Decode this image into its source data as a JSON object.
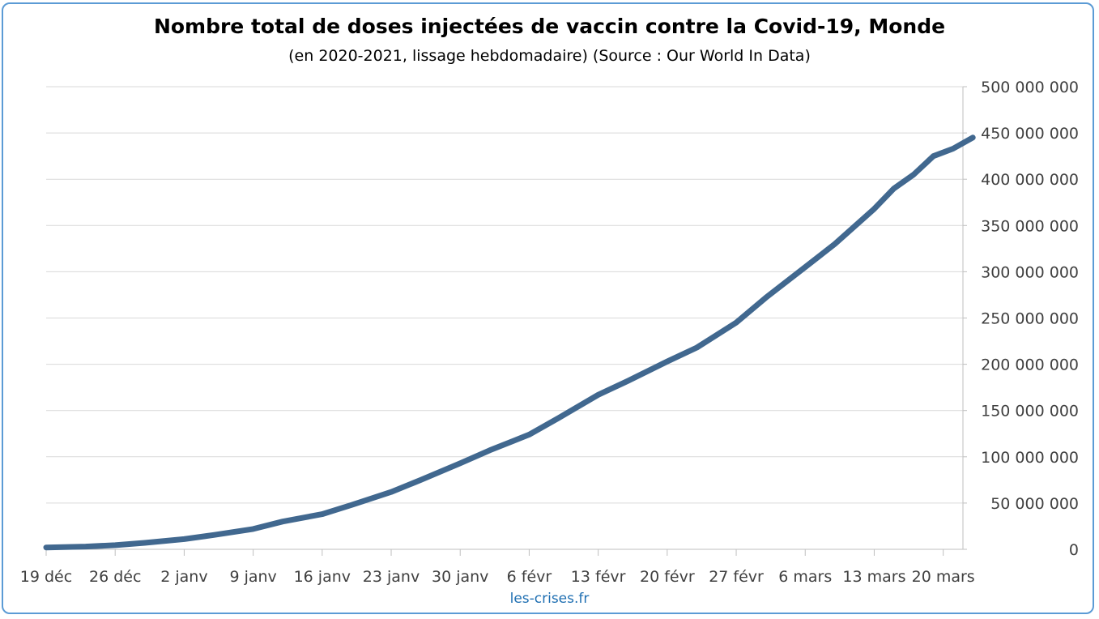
{
  "chart_data": {
    "type": "line",
    "title": "Nombre total de doses injectées de vaccin contre la Covid-19, Monde",
    "subtitle": "(en 2020-2021, lissage hebdomadaire) (Source : Our World In Data)",
    "credit": "les-crises.fr",
    "x_tick_labels": [
      "19 déc",
      "26 déc",
      "2 janv",
      "9 janv",
      "16 janv",
      "23 janv",
      "30 janv",
      "6 févr",
      "13 févr",
      "20 févr",
      "27 févr",
      "6 mars",
      "13 mars",
      "20 mars"
    ],
    "y_tick_labels": [
      "0",
      "50 000 000",
      "100 000 000",
      "150 000 000",
      "200 000 000",
      "250 000 000",
      "300 000 000",
      "350 000 000",
      "400 000 000",
      "450 000 000",
      "500 000 000"
    ],
    "ylim": [
      0,
      500000000
    ],
    "y_axis_position": "right",
    "grid": true,
    "line_color": "#41688f",
    "series": [
      {
        "x": [
          "2020-12-19",
          "2020-12-23",
          "2020-12-26",
          "2020-12-29",
          "2021-01-02",
          "2021-01-05",
          "2021-01-09",
          "2021-01-12",
          "2021-01-16",
          "2021-01-19",
          "2021-01-23",
          "2021-01-26",
          "2021-01-30",
          "2021-02-02",
          "2021-02-06",
          "2021-02-09",
          "2021-02-13",
          "2021-02-16",
          "2021-02-20",
          "2021-02-23",
          "2021-02-27",
          "2021-03-02",
          "2021-03-06",
          "2021-03-09",
          "2021-03-13",
          "2021-03-15",
          "2021-03-17",
          "2021-03-19",
          "2021-03-21",
          "2021-03-23"
        ],
        "y": [
          2000000,
          3000000,
          4500000,
          7000000,
          11000000,
          15500000,
          22000000,
          30000000,
          38000000,
          48000000,
          62000000,
          75000000,
          93000000,
          107000000,
          124000000,
          142000000,
          167000000,
          182000000,
          203000000,
          218000000,
          245000000,
          272000000,
          305000000,
          330000000,
          368000000,
          390000000,
          405000000,
          425000000,
          433000000,
          445000000
        ]
      }
    ]
  }
}
